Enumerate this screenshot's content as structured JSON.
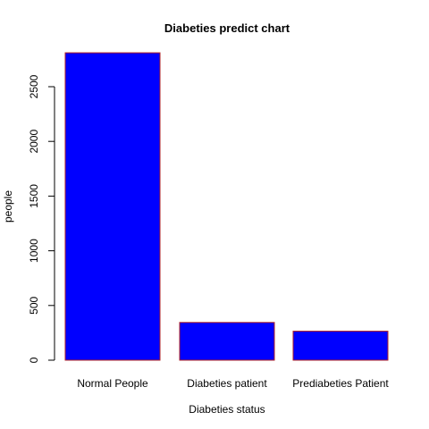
{
  "chart_data": {
    "type": "bar",
    "title": "Diabeties predict chart",
    "xlabel": "Diabeties status",
    "ylabel": "people",
    "categories": [
      "Normal People",
      "Diabeties patient",
      "Prediabeties Patient"
    ],
    "values": [
      2810,
      345,
      265
    ],
    "yticks": [
      0,
      500,
      1000,
      1500,
      2000,
      2500
    ],
    "ylim": [
      0,
      2810
    ],
    "bar_fill": "#0000FF",
    "bar_border": "#B22222",
    "grid": false,
    "legend": "none"
  }
}
